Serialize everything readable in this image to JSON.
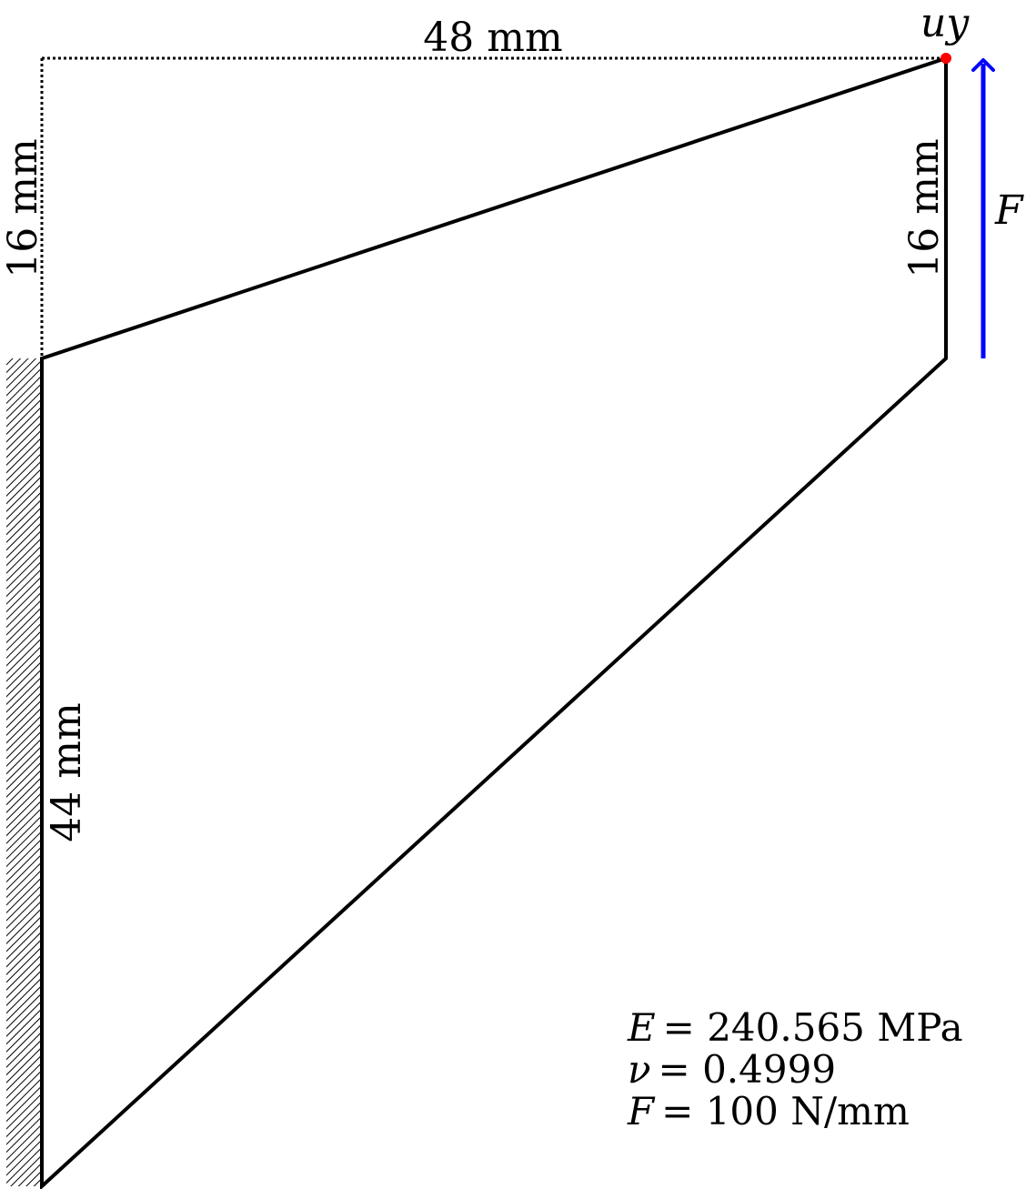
{
  "dimensions": {
    "top_width": "48 mm",
    "left_top_height": "16 mm",
    "right_height": "16 mm",
    "left_height": "44 mm"
  },
  "labels": {
    "displacement": "u",
    "displacement_sub": "y",
    "force": "F"
  },
  "parameters": [
    {
      "symbol": "E",
      "value": "= 240.565 MPa"
    },
    {
      "symbol": "ν",
      "value": "= 0.4999"
    },
    {
      "symbol": "F",
      "value": "= 100 N/mm"
    }
  ],
  "colors": {
    "outline": "#000000",
    "force_arrow": "#0000ff",
    "marker": "#ff0000"
  }
}
